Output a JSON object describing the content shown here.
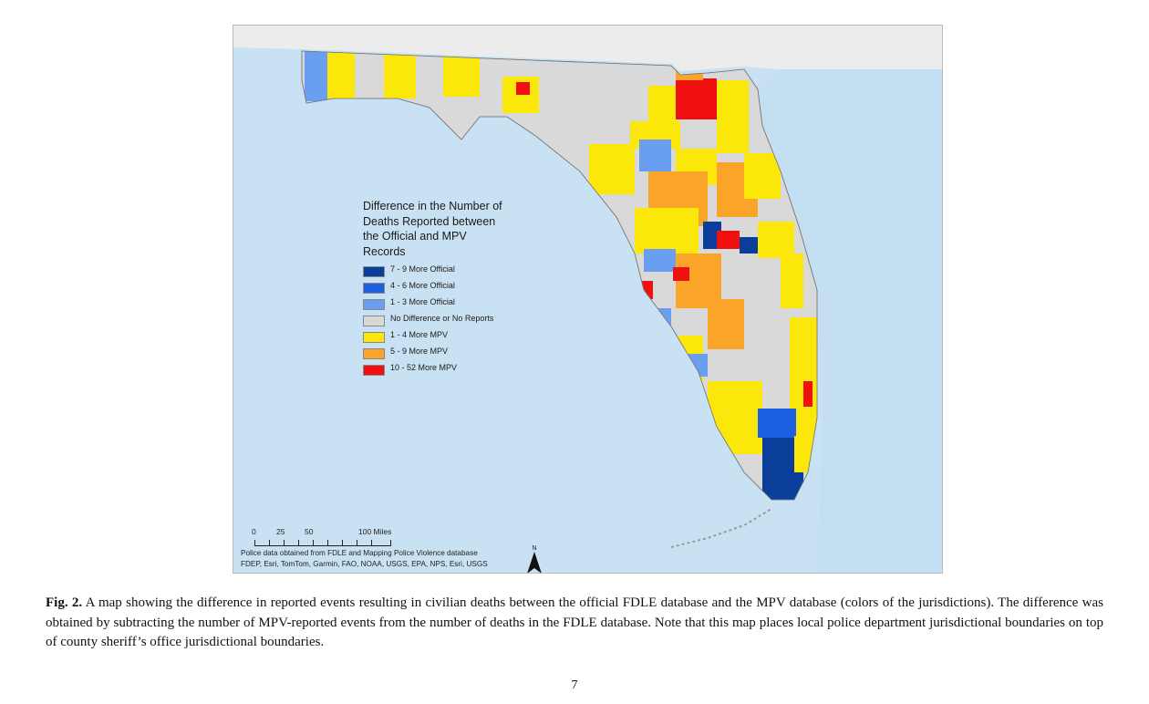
{
  "figure": {
    "legend": {
      "title": "Difference in the Number of Deaths Reported between the Official and MPV Records",
      "items": [
        {
          "label": "7 - 9 More Official",
          "color": "#0a3e9a"
        },
        {
          "label": "4 - 6 More Official",
          "color": "#1c5fe0"
        },
        {
          "label": "1 - 3 More Official",
          "color": "#6a9ef0"
        },
        {
          "label": "No Difference or No Reports",
          "color": "#d9d9d9"
        },
        {
          "label": "1 - 4 More MPV",
          "color": "#fbe70a"
        },
        {
          "label": "5 - 9 More MPV",
          "color": "#fba42a"
        },
        {
          "label": "10 - 52 More MPV",
          "color": "#f01010"
        }
      ]
    },
    "scale_bar": {
      "ticks": [
        "0",
        "25",
        "50",
        "100 Miles"
      ]
    },
    "north_arrow_label": "N",
    "credits": [
      "Police data obtained from FDLE and Mapping Police Violence database",
      "FDEP, Esri, TomTom, Garmin, FAO, NOAA, USGS, EPA, NPS, Esri, USGS"
    ],
    "colors": {
      "water": "#c9e2f3",
      "land_outside": "#ececec"
    }
  },
  "caption": {
    "label": "Fig. 2.",
    "text": "A map showing the difference in reported events resulting in civilian deaths between the official FDLE database and the MPV database (colors of the jurisdictions). The difference was obtained by subtracting the number of MPV-reported events from the number of deaths in the FDLE database. Note that this map places local police department jurisdictional boundaries on top of county sheriff’s office jurisdictional boundaries."
  },
  "page_number": "7"
}
